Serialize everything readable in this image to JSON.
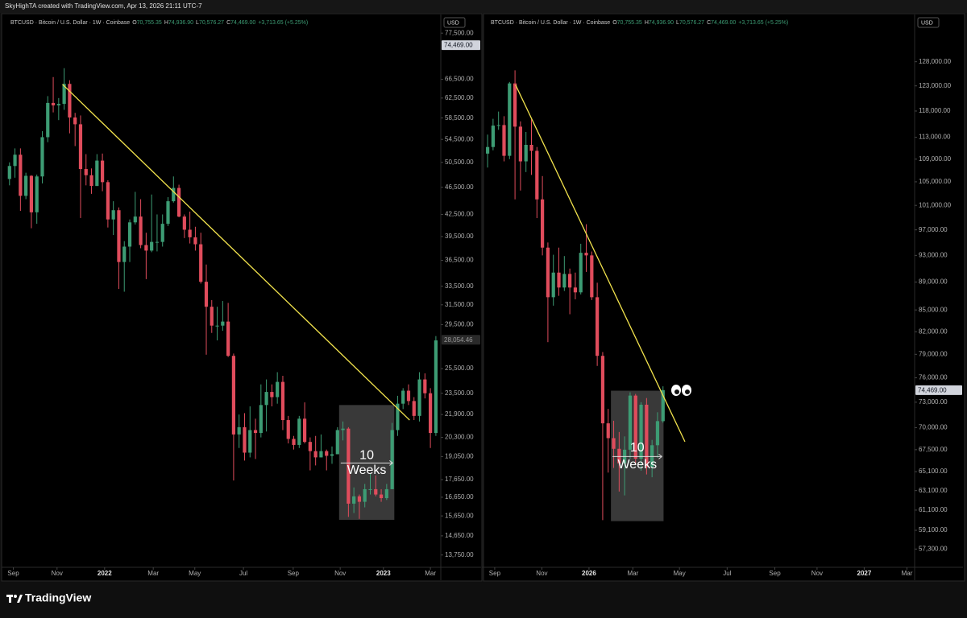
{
  "header": {
    "text": "SkyHighTA created with TradingView.com, Apr 13, 2026 21:11 UTC-7"
  },
  "footer": {
    "brand": "TradingView"
  },
  "chart_data": [
    {
      "type": "candlestick",
      "legend": {
        "symbol": "BTCUSD · Bitcoin / U.S. Dollar · 1W · Coinbase",
        "fields": [
          {
            "letter": "O",
            "value": "70,755.35"
          },
          {
            "letter": "H",
            "value": "74,936.90"
          },
          {
            "letter": "L",
            "value": "70,576.27"
          },
          {
            "letter": "C",
            "value": "74,469.00"
          }
        ],
        "change": "+3,713.65 (+5.25%)"
      },
      "currency": "USD",
      "log_scale": true,
      "up_color": "#3d9c74",
      "down_color": "#e04c5c",
      "x": [
        0,
        1,
        2,
        3,
        4,
        5,
        6,
        7,
        8,
        9,
        10,
        11,
        12,
        13,
        14,
        15,
        16,
        17,
        18,
        19,
        20,
        21,
        22,
        23,
        24,
        25,
        26,
        27,
        28,
        29,
        30,
        31,
        32,
        33,
        34,
        35,
        36,
        37,
        38,
        39,
        40,
        41,
        42,
        43,
        44,
        45,
        46,
        47,
        48,
        49,
        50,
        51,
        52,
        53,
        54,
        55,
        56,
        57,
        58,
        59,
        60,
        61,
        62,
        63,
        64,
        65,
        66,
        67,
        68,
        69,
        70,
        71,
        72,
        73,
        74,
        75,
        76,
        77,
        78
      ],
      "open": [
        47800,
        49900,
        51800,
        45200,
        48300,
        42800,
        48200,
        54900,
        61500,
        61000,
        61300,
        65500,
        58600,
        57300,
        49400,
        48400,
        46700,
        50800,
        47300,
        41800,
        43100,
        36300,
        38200,
        41400,
        42200,
        38400,
        37700,
        38800,
        38800,
        41200,
        44400,
        46400,
        42200,
        40400,
        39400,
        38500,
        34000,
        31300,
        29400,
        29400,
        29800,
        26600,
        20500,
        21000,
        19300,
        20800,
        20600,
        22600,
        23600,
        23200,
        24400,
        21500,
        20200,
        19800,
        21600,
        20000,
        19400,
        19000,
        19400,
        19100,
        19200,
        20800,
        20900,
        16300,
        16700,
        16400,
        17100,
        17100,
        16800,
        16600,
        17100,
        20800,
        22700,
        23700,
        22900,
        21800,
        24600,
        23500,
        20600
      ],
      "high": [
        50500,
        52900,
        52900,
        48800,
        48400,
        48500,
        56000,
        62900,
        67000,
        62500,
        69000,
        66300,
        59500,
        59000,
        51900,
        49500,
        51900,
        52000,
        47600,
        44400,
        43500,
        38900,
        41800,
        45800,
        44700,
        40000,
        45400,
        42500,
        42500,
        45000,
        48200,
        46900,
        42500,
        42900,
        40800,
        40000,
        36000,
        32000,
        31300,
        31900,
        31700,
        26800,
        21900,
        22000,
        22500,
        21600,
        24200,
        24600,
        24200,
        25200,
        24900,
        21800,
        20400,
        21800,
        22800,
        20300,
        20400,
        20500,
        19500,
        19700,
        21000,
        21400,
        21000,
        17200,
        16800,
        17400,
        18000,
        17900,
        17100,
        17400,
        21300,
        23300,
        23900,
        24200,
        23200,
        25200,
        25100,
        23900,
        28400
      ],
      "low": [
        46800,
        48000,
        43000,
        44700,
        40600,
        41200,
        47100,
        54000,
        59600,
        58100,
        60100,
        55600,
        53300,
        42000,
        46800,
        45500,
        46700,
        45900,
        40700,
        39700,
        33200,
        32900,
        36300,
        41100,
        38000,
        34300,
        37500,
        37600,
        38200,
        40900,
        44200,
        42100,
        39300,
        38600,
        37700,
        33800,
        26700,
        28700,
        28000,
        28900,
        26500,
        17600,
        19600,
        18800,
        19000,
        18900,
        20300,
        20700,
        22500,
        22700,
        20800,
        19900,
        19500,
        19600,
        19900,
        18200,
        18500,
        19000,
        18200,
        18600,
        19200,
        20100,
        15600,
        15800,
        15500,
        16100,
        16800,
        16700,
        16400,
        16500,
        17100,
        20400,
        22300,
        22600,
        21500,
        21400,
        23100,
        19600,
        20400
      ],
      "close": [
        49900,
        51800,
        45200,
        48300,
        42800,
        48200,
        54900,
        61500,
        61000,
        61300,
        65500,
        58600,
        57300,
        49400,
        48400,
        46700,
        50800,
        47300,
        41800,
        43100,
        36300,
        38200,
        41400,
        42200,
        38400,
        37700,
        38800,
        38800,
        41200,
        44400,
        46400,
        42200,
        40400,
        39400,
        38500,
        34000,
        31300,
        29400,
        29400,
        29800,
        26600,
        20500,
        21000,
        19300,
        20800,
        20600,
        22600,
        23600,
        23200,
        24400,
        21500,
        20200,
        19800,
        21600,
        20000,
        19400,
        19000,
        19400,
        19100,
        19200,
        20800,
        20900,
        16300,
        16700,
        16400,
        17100,
        17100,
        16800,
        16600,
        17100,
        20800,
        22700,
        23700,
        22900,
        21800,
        24600,
        23500,
        20600,
        28000
      ],
      "xlim": [
        -1.0,
        78.9
      ],
      "xticks": [
        {
          "value": 0.7,
          "label": "Sep"
        },
        {
          "value": 8.7,
          "label": "Nov"
        },
        {
          "value": 17.4,
          "label": "2022"
        },
        {
          "value": 26.3,
          "label": "Mar"
        },
        {
          "value": 33.9,
          "label": "May"
        },
        {
          "value": 42.8,
          "label": "Jul"
        },
        {
          "value": 51.9,
          "label": "Sep"
        },
        {
          "value": 60.5,
          "label": "Nov"
        },
        {
          "value": 68.4,
          "label": "2023"
        },
        {
          "value": 77.0,
          "label": "Mar"
        }
      ],
      "ylim": [
        13200,
        82000
      ],
      "yticks": [
        {
          "value": 77500,
          "label": "77,500.00"
        },
        {
          "value": 66500,
          "label": "66,500.00"
        },
        {
          "value": 62500,
          "label": "62,500.00"
        },
        {
          "value": 58500,
          "label": "58,500.00"
        },
        {
          "value": 54500,
          "label": "54,500.00"
        },
        {
          "value": 50500,
          "label": "50,500.00"
        },
        {
          "value": 46500,
          "label": "46,500.00"
        },
        {
          "value": 42500,
          "label": "42,500.00"
        },
        {
          "value": 39500,
          "label": "39,500.00"
        },
        {
          "value": 36500,
          "label": "36,500.00"
        },
        {
          "value": 33500,
          "label": "33,500.00"
        },
        {
          "value": 31500,
          "label": "31,500.00"
        },
        {
          "value": 29500,
          "label": "29,500.00"
        },
        {
          "value": 25500,
          "label": "25,500.00"
        },
        {
          "value": 23500,
          "label": "23,500.00"
        },
        {
          "value": 21900,
          "label": "21,900.00"
        },
        {
          "value": 20300,
          "label": "20,300.00"
        },
        {
          "value": 19050,
          "label": "19,050.00"
        },
        {
          "value": 17650,
          "label": "17,650.00"
        },
        {
          "value": 16650,
          "label": "16,650.00"
        },
        {
          "value": 15650,
          "label": "15,650.00"
        },
        {
          "value": 14650,
          "label": "14,650.00"
        },
        {
          "value": 13750,
          "label": "13,750.00"
        }
      ],
      "price_markers": [
        {
          "value": 74469,
          "label": "74,469.00",
          "bg": "#d1d4dc",
          "text_color": "#131722"
        },
        {
          "value": 28054.46,
          "label": "28,054.46",
          "bg": "#2a2a2a",
          "text_color": "#9a9a9a"
        }
      ],
      "trendline": {
        "x": [
          9.7,
          73.2
        ],
        "y": [
          65400,
          21500
        ],
        "color": "#f2e34d"
      },
      "box": {
        "x": [
          60.3,
          70.4
        ],
        "y": [
          15450,
          22600
        ],
        "color": "rgba(150,150,150,0.38)",
        "label_top": "10",
        "label_bottom": "Weeks"
      }
    },
    {
      "type": "candlestick",
      "legend": {
        "symbol": "BTCUSD · Bitcoin / U.S. Dollar · 1W · Coinbase",
        "fields": [
          {
            "letter": "O",
            "value": "70,755.35"
          },
          {
            "letter": "H",
            "value": "74,936.90"
          },
          {
            "letter": "L",
            "value": "70,576.27"
          },
          {
            "letter": "C",
            "value": "74,469.00"
          }
        ],
        "change": "+3,713.65 (+5.25%)"
      },
      "currency": "USD",
      "log_scale": true,
      "up_color": "#3d9c74",
      "down_color": "#e04c5c",
      "x": [
        0,
        1,
        2,
        3,
        4,
        5,
        6,
        7,
        8,
        9,
        10,
        11,
        12,
        13,
        14,
        15,
        16,
        17,
        18,
        19,
        20,
        21,
        22,
        23,
        24,
        25,
        26,
        27,
        28,
        29,
        30,
        31,
        32
      ],
      "open": [
        110000,
        111200,
        115200,
        115300,
        109600,
        123500,
        115000,
        108600,
        111600,
        110500,
        102000,
        94200,
        86800,
        90400,
        88200,
        90200,
        88200,
        87500,
        93400,
        93000,
        86800,
        78800,
        70500,
        68800,
        67600,
        66000,
        67500,
        73800,
        66500,
        72700,
        65600,
        68000,
        70755.35
      ],
      "high": [
        113500,
        116500,
        117900,
        117000,
        123800,
        126200,
        116000,
        114000,
        116400,
        111200,
        106000,
        95000,
        93100,
        94200,
        92900,
        91000,
        90400,
        94800,
        97900,
        93600,
        88900,
        79300,
        72200,
        70800,
        69500,
        69000,
        74200,
        74000,
        73000,
        73500,
        68600,
        71800,
        74936.9
      ],
      "low": [
        107500,
        110600,
        114400,
        108600,
        109000,
        102000,
        103500,
        106700,
        106200,
        98900,
        93000,
        80600,
        85600,
        87000,
        87700,
        84400,
        86500,
        87200,
        90500,
        86400,
        77500,
        60100,
        65000,
        65500,
        63000,
        62600,
        66500,
        65800,
        65200,
        64800,
        64500,
        66600,
        70576.27
      ],
      "close": [
        111200,
        115200,
        115300,
        109600,
        123500,
        115000,
        108600,
        111600,
        110500,
        102000,
        94200,
        86800,
        90400,
        88200,
        90200,
        88200,
        87500,
        93400,
        93000,
        86800,
        78800,
        70500,
        68800,
        67600,
        66000,
        67500,
        73800,
        66500,
        72700,
        65600,
        68000,
        70755.35,
        74469
      ],
      "xlim": [
        -0.6,
        77.9
      ],
      "xticks": [
        {
          "value": 1.3,
          "label": "Sep"
        },
        {
          "value": 9.9,
          "label": "Nov"
        },
        {
          "value": 18.5,
          "label": "2026"
        },
        {
          "value": 26.5,
          "label": "Mar"
        },
        {
          "value": 35.0,
          "label": "May"
        },
        {
          "value": 43.7,
          "label": "Jul"
        },
        {
          "value": 52.4,
          "label": "Sep"
        },
        {
          "value": 60.1,
          "label": "Nov"
        },
        {
          "value": 68.7,
          "label": "2027"
        },
        {
          "value": 76.5,
          "label": "Mar"
        }
      ],
      "ylim": [
        55600,
        138000
      ],
      "yticks": [
        {
          "value": 128000,
          "label": "128,000.00"
        },
        {
          "value": 123000,
          "label": "123,000.00"
        },
        {
          "value": 118000,
          "label": "118,000.00"
        },
        {
          "value": 113000,
          "label": "113,000.00"
        },
        {
          "value": 109000,
          "label": "109,000.00"
        },
        {
          "value": 105000,
          "label": "105,000.00"
        },
        {
          "value": 101000,
          "label": "101,000.00"
        },
        {
          "value": 97000,
          "label": "97,000.00"
        },
        {
          "value": 93000,
          "label": "93,000.00"
        },
        {
          "value": 89000,
          "label": "89,000.00"
        },
        {
          "value": 85000,
          "label": "85,000.00"
        },
        {
          "value": 82000,
          "label": "82,000.00"
        },
        {
          "value": 79000,
          "label": "79,000.00"
        },
        {
          "value": 76000,
          "label": "76,000.00"
        },
        {
          "value": 73000,
          "label": "73,000.00"
        },
        {
          "value": 70000,
          "label": "70,000.00"
        },
        {
          "value": 67500,
          "label": "67,500.00"
        },
        {
          "value": 65100,
          "label": "65,100.00"
        },
        {
          "value": 63100,
          "label": "63,100.00"
        },
        {
          "value": 61100,
          "label": "61,100.00"
        },
        {
          "value": 59100,
          "label": "59,100.00"
        },
        {
          "value": 57300,
          "label": "57,300.00"
        }
      ],
      "price_markers": [
        {
          "value": 74469,
          "label": "74,469.00",
          "bg": "#d1d4dc",
          "text_color": "#131722"
        }
      ],
      "trendline": {
        "x": [
          5.1,
          36.0
        ],
        "y": [
          123200,
          68400
        ],
        "color": "#f2e34d"
      },
      "box": {
        "x": [
          22.5,
          32.1
        ],
        "y": [
          60000,
          74400
        ],
        "color": "rgba(150,150,150,0.38)",
        "label_top": "10",
        "label_bottom": "Weeks"
      }
    }
  ]
}
